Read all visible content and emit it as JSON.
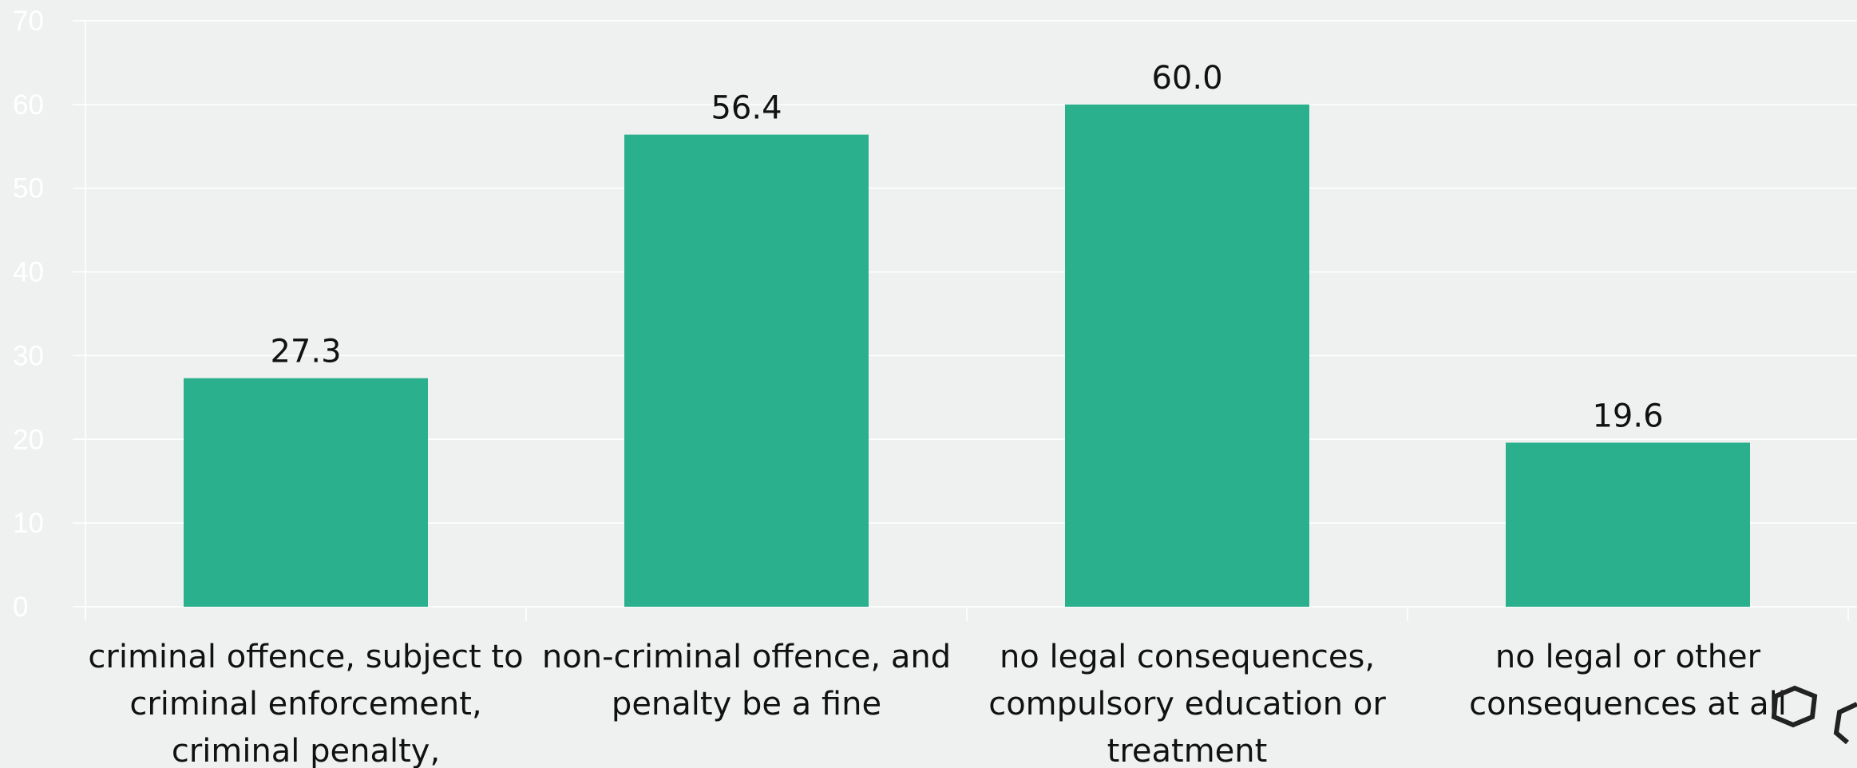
{
  "colors": {
    "background": "#eff1f0",
    "bar": "#2bb08d",
    "gridline": "#ffffff",
    "tick_text": "#ffffff",
    "label_text": "#111111"
  },
  "chart_data": {
    "type": "bar",
    "categories": [
      [
        "criminal offence, subject to",
        "criminal enforcement,",
        "criminal penalty,"
      ],
      [
        "non-criminal offence, and",
        "penalty be a fine"
      ],
      [
        "no legal consequences,",
        "compulsory education or",
        "treatment"
      ],
      [
        "no legal or other",
        "consequences at all"
      ]
    ],
    "values": [
      27.3,
      56.4,
      60.0,
      19.6
    ],
    "data_labels": [
      "27.3",
      "56.4",
      "60.0",
      "19.6"
    ],
    "title": "",
    "xlabel": "",
    "ylabel": "",
    "ylim": [
      0,
      70
    ],
    "yticks": [
      "0",
      "10",
      "20",
      "30",
      "40",
      "50",
      "60",
      "70"
    ],
    "grid": true,
    "legend": "none"
  },
  "decoration": {
    "icon": "hexagon-logo-icon"
  }
}
